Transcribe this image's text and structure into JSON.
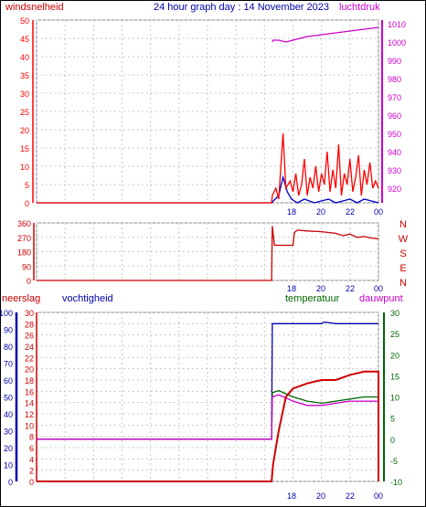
{
  "title": "24 hour graph day : 14 November 2023",
  "colors": {
    "wind": "#ff0000",
    "gust": "#0000cc",
    "pressure": "#cc00cc",
    "humidity": "#0000aa",
    "temperature": "#006600",
    "dewpoint": "#cc00cc",
    "rain": "#cc0000",
    "direction": "#cc0000",
    "grid": "#c8c8c8"
  },
  "chart_data": [
    {
      "type": "line",
      "name": "wind-pressure",
      "left_axis_label": "windsnelheid",
      "right_axis_label": "luchtdruk",
      "x_ticks": [
        "18",
        "20",
        "22",
        "00"
      ],
      "y_left": {
        "min": 0,
        "max": 50,
        "ticks": [
          0,
          5,
          10,
          15,
          20,
          25,
          30,
          35,
          40,
          45,
          50
        ]
      },
      "y_right": {
        "min": 912,
        "max": 1012,
        "ticks": [
          920,
          930,
          940,
          950,
          960,
          970,
          980,
          990,
          1000,
          1010
        ]
      },
      "wind_speed": [
        [
          0,
          0
        ],
        [
          12,
          0
        ],
        [
          16.5,
          0
        ],
        [
          16.55,
          2
        ],
        [
          16.8,
          4
        ],
        [
          17,
          1
        ],
        [
          17.3,
          19
        ],
        [
          17.5,
          4
        ],
        [
          17.8,
          6
        ],
        [
          18,
          3
        ],
        [
          18.2,
          8
        ],
        [
          18.4,
          2
        ],
        [
          18.6,
          5
        ],
        [
          18.8,
          12
        ],
        [
          19,
          2
        ],
        [
          19.2,
          7
        ],
        [
          19.4,
          4
        ],
        [
          19.6,
          10
        ],
        [
          19.8,
          3
        ],
        [
          20,
          8
        ],
        [
          20.2,
          5
        ],
        [
          20.4,
          14
        ],
        [
          20.6,
          3
        ],
        [
          20.8,
          9
        ],
        [
          21,
          4
        ],
        [
          21.2,
          16
        ],
        [
          21.4,
          2
        ],
        [
          21.6,
          8
        ],
        [
          21.8,
          5
        ],
        [
          22,
          12
        ],
        [
          22.2,
          3
        ],
        [
          22.4,
          7
        ],
        [
          22.6,
          13
        ],
        [
          22.8,
          2
        ],
        [
          23,
          9
        ],
        [
          23.2,
          5
        ],
        [
          23.4,
          11
        ],
        [
          23.6,
          4
        ],
        [
          23.8,
          6
        ],
        [
          24,
          4
        ]
      ],
      "gust": [
        [
          0,
          0
        ],
        [
          16.5,
          0
        ],
        [
          17,
          2
        ],
        [
          17.3,
          7
        ],
        [
          17.6,
          3
        ],
        [
          17.9,
          1
        ],
        [
          18.3,
          0
        ],
        [
          18.8,
          1
        ],
        [
          19.5,
          0
        ],
        [
          20.5,
          1
        ],
        [
          21,
          0
        ],
        [
          22,
          1
        ],
        [
          22.5,
          0
        ],
        [
          23,
          1
        ],
        [
          24,
          0
        ]
      ],
      "pressure": [
        [
          16.55,
          1000
        ],
        [
          16.6,
          1001
        ],
        [
          17,
          1001
        ],
        [
          17.5,
          1000
        ],
        [
          18,
          1001
        ],
        [
          19,
          1003
        ],
        [
          20,
          1004
        ],
        [
          21,
          1005
        ],
        [
          22,
          1006
        ],
        [
          23,
          1007
        ],
        [
          24,
          1008
        ]
      ]
    },
    {
      "type": "line",
      "name": "wind-direction",
      "y_ticks": [
        0,
        90,
        180,
        270,
        360
      ],
      "compass_labels": [
        "N",
        "W",
        "S",
        "E",
        "N"
      ],
      "direction": [
        [
          0,
          0
        ],
        [
          16.5,
          0
        ],
        [
          16.55,
          340
        ],
        [
          16.7,
          220
        ],
        [
          18,
          220
        ],
        [
          18.1,
          300
        ],
        [
          18.3,
          315
        ],
        [
          19,
          310
        ],
        [
          20,
          305
        ],
        [
          20.5,
          300
        ],
        [
          21,
          295
        ],
        [
          21.5,
          280
        ],
        [
          22,
          290
        ],
        [
          22.5,
          270
        ],
        [
          23,
          275
        ],
        [
          23.5,
          265
        ],
        [
          24,
          260
        ]
      ]
    },
    {
      "type": "line",
      "name": "humidity-temperature",
      "labels": {
        "rain": "neerslag",
        "humidity": "vochtigheid",
        "temperature": "temperatuur",
        "dewpoint": "dauwpunt"
      },
      "x_ticks": [
        "18",
        "20",
        "22",
        "00"
      ],
      "rain_axis": {
        "min": 0,
        "max": 10,
        "ticks": [
          0,
          10,
          20,
          30,
          40,
          50,
          60,
          70,
          80,
          90,
          100
        ]
      },
      "humidity_axis": {
        "min": 0,
        "max": 30,
        "ticks": [
          0,
          2,
          4,
          6,
          8,
          10,
          12,
          14,
          16,
          18,
          20,
          22,
          24,
          26,
          28,
          30
        ]
      },
      "temperature_axis": {
        "min": -10,
        "max": 30,
        "ticks": [
          -10,
          -5,
          0,
          5,
          10,
          15,
          20,
          25,
          30
        ]
      },
      "humidity": [
        [
          0,
          7.5
        ],
        [
          16.5,
          7.5
        ],
        [
          16.55,
          28
        ],
        [
          17,
          28
        ],
        [
          18,
          28
        ],
        [
          19,
          28
        ],
        [
          20,
          28
        ],
        [
          20.2,
          28.3
        ],
        [
          21,
          28
        ],
        [
          22,
          28
        ],
        [
          24,
          28
        ]
      ],
      "temperature": [
        [
          0,
          0
        ],
        [
          16.5,
          0
        ],
        [
          16.55,
          11
        ],
        [
          17,
          11.5
        ],
        [
          18,
          10
        ],
        [
          19,
          9
        ],
        [
          20,
          8.5
        ],
        [
          21,
          9
        ],
        [
          22,
          9.5
        ],
        [
          23,
          10
        ],
        [
          24,
          10
        ]
      ],
      "dewpoint": [
        [
          0,
          0
        ],
        [
          16.5,
          0
        ],
        [
          16.55,
          10
        ],
        [
          17,
          10.5
        ],
        [
          18,
          9
        ],
        [
          19,
          8
        ],
        [
          20,
          8
        ],
        [
          21,
          8.5
        ],
        [
          22,
          9
        ],
        [
          23,
          9
        ],
        [
          24,
          9
        ]
      ],
      "rain": [
        [
          0,
          0
        ],
        [
          16.5,
          0
        ],
        [
          16.6,
          1
        ],
        [
          17,
          3
        ],
        [
          17.5,
          5
        ],
        [
          18,
          5.5
        ],
        [
          19,
          5.8
        ],
        [
          20,
          6
        ],
        [
          21,
          6
        ],
        [
          22,
          6.3
        ],
        [
          23,
          6.5
        ],
        [
          24,
          6.5
        ],
        [
          24,
          0
        ]
      ]
    }
  ]
}
